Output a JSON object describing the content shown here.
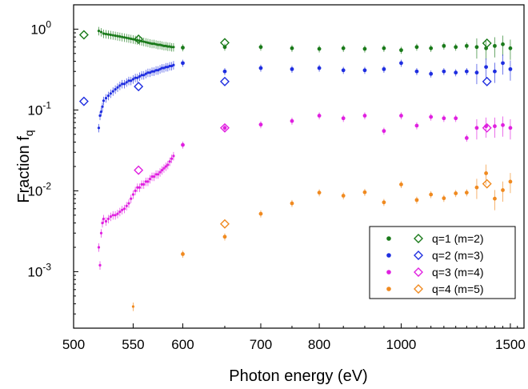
{
  "chart_data": {
    "type": "scatter",
    "xlabel": "Photon energy (eV)",
    "ylabel": "Fraction f",
    "ylabel_sub": "q",
    "xscale": "reciprocal",
    "yscale": "log",
    "xlim": [
      500,
      1600
    ],
    "ylim": [
      0.0002,
      2
    ],
    "x_ticks": [
      500,
      550,
      600,
      700,
      800,
      1000,
      1500
    ],
    "y_ticks": [
      {
        "value": 1,
        "mantissa": "10",
        "exp": "0"
      },
      {
        "value": 0.1,
        "mantissa": "10",
        "exp": "-1"
      },
      {
        "value": 0.01,
        "mantissa": "10",
        "exp": "-2"
      },
      {
        "value": 0.001,
        "mantissa": "10",
        "exp": "-3"
      }
    ],
    "legend_position": "bottom-right",
    "series": [
      {
        "name": "q=1 (m=2)",
        "color": "#1a7a1a",
        "measured_x": [
          520,
          522,
          524,
          526,
          528,
          530,
          532,
          534,
          536,
          538,
          540,
          542,
          544,
          546,
          548,
          550,
          552,
          554,
          556,
          558,
          560,
          562,
          564,
          566,
          568,
          570,
          572,
          574,
          576,
          578,
          580,
          582,
          584,
          586,
          588,
          590,
          600,
          650,
          700,
          750,
          800,
          850,
          900,
          950,
          1000,
          1050,
          1100,
          1150,
          1200,
          1250,
          1300,
          1350,
          1400,
          1450,
          1500
        ],
        "measured_y": [
          0.95,
          0.92,
          0.88,
          0.87,
          0.86,
          0.85,
          0.84,
          0.83,
          0.82,
          0.81,
          0.8,
          0.79,
          0.78,
          0.77,
          0.76,
          0.75,
          0.74,
          0.73,
          0.72,
          0.71,
          0.7,
          0.69,
          0.68,
          0.67,
          0.66,
          0.66,
          0.65,
          0.64,
          0.64,
          0.63,
          0.62,
          0.62,
          0.61,
          0.61,
          0.6,
          0.6,
          0.59,
          0.6,
          0.6,
          0.58,
          0.57,
          0.58,
          0.57,
          0.58,
          0.55,
          0.6,
          0.58,
          0.62,
          0.6,
          0.62,
          0.6,
          0.58,
          0.62,
          0.65,
          0.58
        ],
        "calculated_x": [
          508,
          555,
          650,
          1355
        ],
        "calculated_y": [
          0.85,
          0.75,
          0.68,
          0.67
        ]
      },
      {
        "name": "q=2 (m=3)",
        "color": "#1f2ee0",
        "measured_x": [
          520,
          521,
          522,
          523,
          524,
          526,
          528,
          530,
          532,
          534,
          536,
          538,
          540,
          542,
          544,
          546,
          548,
          550,
          552,
          554,
          556,
          558,
          560,
          562,
          564,
          566,
          568,
          570,
          572,
          574,
          576,
          578,
          580,
          582,
          584,
          586,
          588,
          590,
          600,
          650,
          700,
          750,
          800,
          850,
          900,
          950,
          1000,
          1050,
          1100,
          1150,
          1200,
          1250,
          1300,
          1350,
          1400,
          1450,
          1500
        ],
        "measured_y": [
          0.06,
          0.085,
          0.095,
          0.11,
          0.13,
          0.14,
          0.15,
          0.16,
          0.17,
          0.18,
          0.19,
          0.2,
          0.21,
          0.21,
          0.22,
          0.23,
          0.23,
          0.24,
          0.25,
          0.25,
          0.26,
          0.27,
          0.27,
          0.28,
          0.29,
          0.29,
          0.3,
          0.3,
          0.31,
          0.31,
          0.32,
          0.33,
          0.33,
          0.34,
          0.34,
          0.35,
          0.35,
          0.36,
          0.38,
          0.3,
          0.33,
          0.32,
          0.33,
          0.31,
          0.31,
          0.32,
          0.38,
          0.3,
          0.28,
          0.3,
          0.29,
          0.3,
          0.29,
          0.34,
          0.3,
          0.38,
          0.32
        ],
        "calculated_x": [
          508,
          555,
          650,
          1355
        ],
        "calculated_y": [
          0.128,
          0.195,
          0.225,
          0.225
        ]
      },
      {
        "name": "q=3 (m=4)",
        "color": "#e020e0",
        "measured_x": [
          520,
          521,
          522,
          523,
          524,
          526,
          528,
          530,
          532,
          534,
          536,
          538,
          540,
          542,
          544,
          546,
          548,
          550,
          552,
          554,
          556,
          558,
          560,
          562,
          564,
          566,
          568,
          570,
          572,
          574,
          576,
          578,
          580,
          582,
          584,
          586,
          588,
          590,
          600,
          650,
          700,
          750,
          800,
          850,
          900,
          950,
          1000,
          1050,
          1100,
          1150,
          1200,
          1250,
          1300,
          1350,
          1400,
          1450,
          1500
        ],
        "measured_y": [
          0.002,
          0.0012,
          0.003,
          0.004,
          0.0045,
          0.0042,
          0.0045,
          0.0048,
          0.005,
          0.005,
          0.0052,
          0.0055,
          0.0058,
          0.006,
          0.0065,
          0.007,
          0.008,
          0.009,
          0.01,
          0.011,
          0.011,
          0.012,
          0.012,
          0.013,
          0.013,
          0.014,
          0.015,
          0.015,
          0.016,
          0.016,
          0.017,
          0.018,
          0.019,
          0.02,
          0.021,
          0.023,
          0.025,
          0.027,
          0.037,
          0.06,
          0.066,
          0.073,
          0.085,
          0.079,
          0.085,
          0.055,
          0.085,
          0.064,
          0.082,
          0.079,
          0.079,
          0.045,
          0.06,
          0.063,
          0.063,
          0.065,
          0.06
        ],
        "calculated_x": [
          555,
          650,
          1355
        ],
        "calculated_y": [
          0.018,
          0.06,
          0.06
        ]
      },
      {
        "name": "q=4 (m=5)",
        "color": "#f08a20",
        "measured_x": [
          550,
          600,
          650,
          700,
          750,
          800,
          850,
          900,
          950,
          1000,
          1050,
          1100,
          1150,
          1200,
          1250,
          1300,
          1350,
          1400,
          1450,
          1500
        ],
        "measured_y": [
          0.00037,
          0.00165,
          0.0027,
          0.0052,
          0.007,
          0.0095,
          0.0087,
          0.0096,
          0.0072,
          0.012,
          0.0077,
          0.009,
          0.0081,
          0.0093,
          0.0095,
          0.011,
          0.0165,
          0.008,
          0.0102,
          0.013
        ],
        "calculated_x": [
          650,
          1355
        ],
        "calculated_y": [
          0.0039,
          0.0122
        ]
      }
    ]
  }
}
